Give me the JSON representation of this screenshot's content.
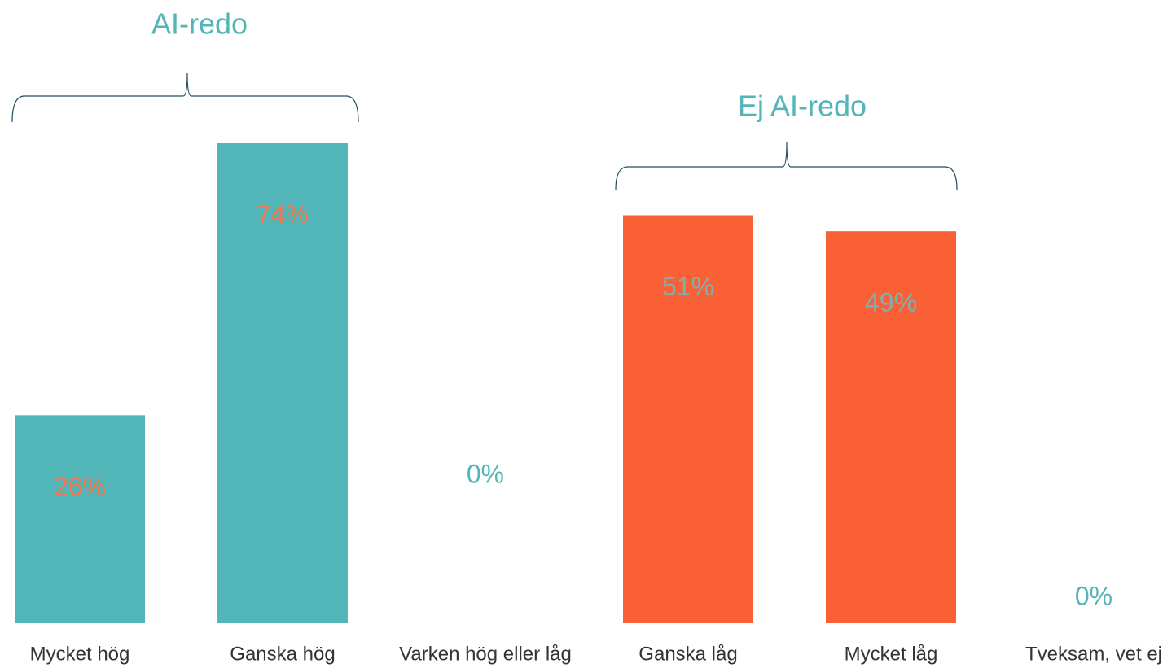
{
  "chart_data": {
    "type": "bar",
    "categories": [
      "Mycket hög",
      "Ganska hög",
      "Varken hög eller låg",
      "Ganska låg",
      "Mycket låg",
      "Tveksam, vet ej"
    ],
    "values": [
      26,
      74,
      0,
      51,
      49,
      0
    ],
    "value_labels": [
      "26%",
      "74%",
      "0%",
      "51%",
      "49%",
      "0%"
    ],
    "colors": [
      "#52b5b8",
      "#52b5b8",
      "#52b5b8",
      "#fa6036",
      "#fa6036",
      "#fa6036"
    ],
    "label_colors": [
      "#f0774f",
      "#f0774f",
      "#52b5b8",
      "#7fb0b0",
      "#7fb0b0",
      "#52b5b8"
    ],
    "ylim": [
      0,
      60
    ],
    "groups": [
      {
        "label": "AI-redo"
      },
      {
        "label": "Ej AI-redo"
      }
    ]
  }
}
